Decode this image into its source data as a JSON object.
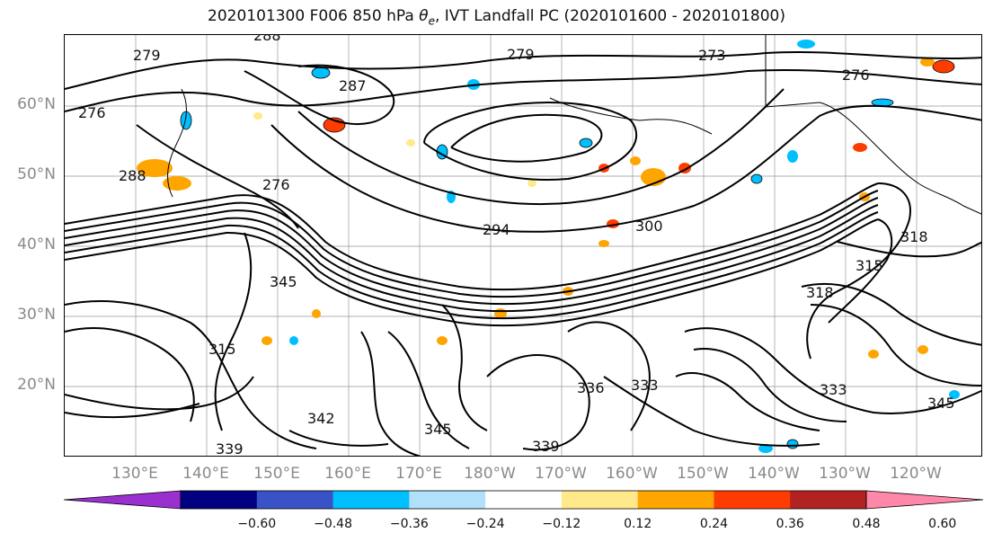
{
  "title_prefix": "2020101300 F006 850 hPa ",
  "title_symbol": "θ",
  "title_subscript": "e",
  "title_suffix": ", IVT Landfall PC (2020101600 - 2020101800)",
  "lat_labels": [
    "60°N",
    "50°N",
    "40°N",
    "30°N",
    "20°N"
  ],
  "lon_labels": [
    "130°E",
    "140°E",
    "150°E",
    "160°E",
    "170°E",
    "180°W",
    "170°W",
    "160°W",
    "150°W",
    "140°W",
    "130°W",
    "120°W"
  ],
  "contour_labels": [
    "279",
    "288",
    "276",
    "276",
    "279",
    "273",
    "287",
    "276",
    "288",
    "294",
    "300",
    "345",
    "315",
    "318",
    "318",
    "315",
    "336",
    "339",
    "345",
    "342",
    "333",
    "345",
    "339",
    "333"
  ],
  "colorbar": {
    "ticks": [
      "−0.60",
      "−0.48",
      "−0.36",
      "−0.24",
      "−0.12",
      "0.12",
      "0.24",
      "0.36",
      "0.48",
      "0.60"
    ],
    "colors": [
      "#9b30d0",
      "#000080",
      "#3a52c8",
      "#00bfff",
      "#b0e0fa",
      "#ffffff",
      "#ffe98a",
      "#ffa500",
      "#ff3c00",
      "#b22222",
      "#ff88aa"
    ],
    "extend": "both"
  }
}
